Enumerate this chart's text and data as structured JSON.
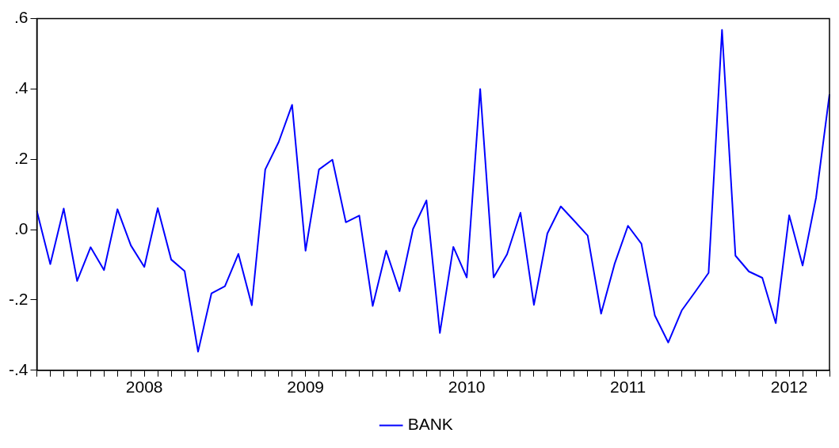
{
  "chart_data": {
    "type": "line",
    "categories": [
      null,
      null,
      null,
      null,
      null,
      null,
      null,
      null,
      "2008",
      null,
      null,
      null,
      null,
      null,
      null,
      null,
      null,
      null,
      null,
      null,
      "2009",
      null,
      null,
      null,
      null,
      null,
      null,
      null,
      null,
      null,
      null,
      null,
      "2010",
      null,
      null,
      null,
      null,
      null,
      null,
      null,
      null,
      null,
      null,
      null,
      "2011",
      null,
      null,
      null,
      null,
      null,
      null,
      null,
      null,
      null,
      null,
      null,
      "2012",
      null,
      null,
      null
    ],
    "series": [
      {
        "name": "BANK",
        "color": "#0000ff",
        "values": [
          0.053,
          -0.098,
          0.06,
          -0.146,
          -0.05,
          -0.115,
          0.058,
          -0.045,
          -0.106,
          0.061,
          -0.085,
          -0.118,
          -0.347,
          -0.181,
          -0.161,
          -0.069,
          -0.215,
          0.171,
          0.249,
          0.355,
          -0.06,
          0.171,
          0.199,
          0.021,
          0.04,
          -0.217,
          -0.06,
          -0.175,
          0.002,
          0.083,
          -0.294,
          -0.049,
          -0.136,
          0.4,
          -0.136,
          -0.07,
          0.048,
          -0.214,
          -0.011,
          0.066,
          0.025,
          -0.017,
          -0.239,
          -0.098,
          0.011,
          -0.04,
          -0.244,
          -0.321,
          -0.23,
          -0.177,
          -0.123,
          0.568,
          -0.074,
          -0.119,
          -0.137,
          -0.266,
          0.041,
          -0.102,
          0.091,
          0.385
        ]
      }
    ],
    "ylim": [
      -0.4,
      0.6
    ],
    "yticks": [
      {
        "value": -0.4,
        "label": "-.4"
      },
      {
        "value": -0.2,
        "label": "-.2"
      },
      {
        "value": 0,
        "label": ".0"
      },
      {
        "value": 0.2,
        "label": ".2"
      },
      {
        "value": 0.4,
        "label": ".4"
      },
      {
        "value": 0.6,
        "label": ".6"
      }
    ],
    "grid": false,
    "legend": "bottom",
    "marker": "none",
    "line_style": "solid"
  }
}
